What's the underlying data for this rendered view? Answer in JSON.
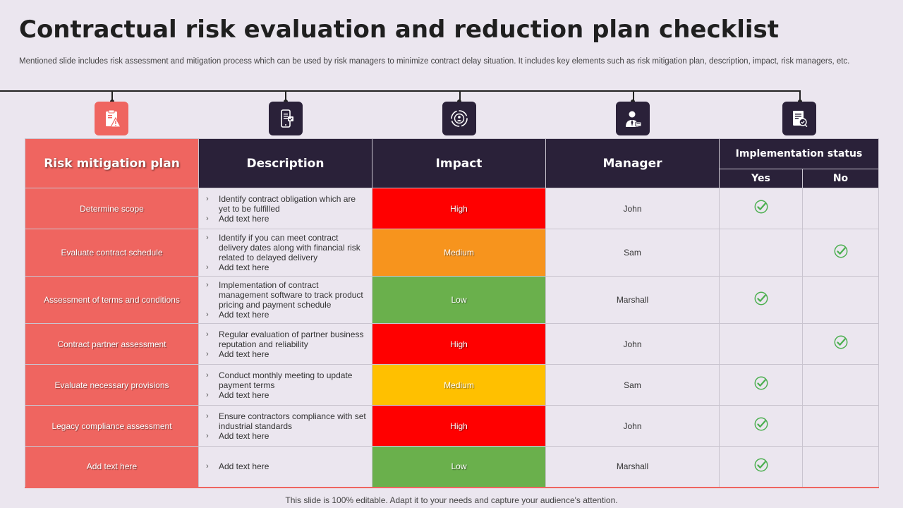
{
  "title": "Contractual risk evaluation and reduction plan checklist",
  "subtitle": "Mentioned slide includes risk assessment and mitigation process which can be used by risk managers to minimize contract delay situation. It includes key elements such as risk mitigation plan, description, impact, risk managers, etc.",
  "icons": [
    "clipboard-warning-icon",
    "mobile-checklist-icon",
    "target-cycle-icon",
    "manager-person-icon",
    "document-check-icon"
  ],
  "colors": {
    "accent": "#ef6560",
    "header_dark": "#2a2139",
    "background": "#ebe6ef",
    "check": "#4caf50",
    "impact_high": "#ff0000",
    "impact_medium_orange": "#f7941d",
    "impact_medium_yellow": "#ffc000",
    "impact_low": "#6ab04c"
  },
  "table": {
    "headers": {
      "plan": "Risk mitigation plan",
      "description": "Description",
      "impact": "Impact",
      "manager": "Manager",
      "status": "Implementation status",
      "yes": "Yes",
      "no": "No"
    },
    "rows": [
      {
        "plan": "Determine scope",
        "desc1": "Identify contract obligation which are yet to be fulfilled",
        "desc2": "Add text here",
        "impact": "High",
        "manager": "John",
        "status": "yes"
      },
      {
        "plan": "Evaluate contract schedule",
        "desc1": "Identify if you can meet contract delivery dates along with financial risk related to delayed delivery",
        "desc2": "Add text here",
        "impact": "Medium",
        "manager": "Sam",
        "status": "no"
      },
      {
        "plan": "Assessment of terms and conditions",
        "desc1": "Implementation of contract management software to track product pricing and payment schedule",
        "desc2": "Add text here",
        "impact": "Low",
        "manager": "Marshall",
        "status": "yes"
      },
      {
        "plan": "Contract partner assessment",
        "desc1": "Regular evaluation of partner business reputation and reliability",
        "desc2": "Add text here",
        "impact": "High",
        "manager": "John",
        "status": "no"
      },
      {
        "plan": "Evaluate necessary provisions",
        "desc1": "Conduct monthly meeting to update payment terms",
        "desc2": "Add text here",
        "impact": "Medium",
        "manager": "Sam",
        "status": "yes"
      },
      {
        "plan": "Legacy compliance assessment",
        "desc1": "Ensure contractors compliance with set industrial standards",
        "desc2": "Add text here",
        "impact": "High",
        "manager": "John",
        "status": "yes"
      },
      {
        "plan": "Add text here",
        "desc1": "Add text here",
        "desc2": "",
        "impact": "Low",
        "manager": "Marshall",
        "status": "yes"
      }
    ]
  },
  "footer": "This slide is 100% editable. Adapt it to your needs and capture your audience's attention."
}
